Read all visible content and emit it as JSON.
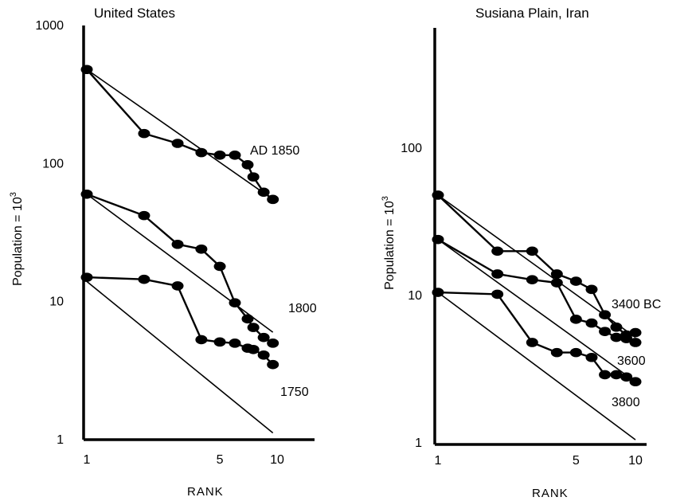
{
  "chart_data": [
    {
      "type": "line",
      "title": "United States",
      "xlabel": "RANK",
      "ylabel": "Population = 10",
      "ylabel_sup": "3",
      "x_scale": "log",
      "y_scale": "log",
      "xlim": [
        1,
        10
      ],
      "ylim": [
        1,
        1000
      ],
      "x_ticks": [
        1,
        5,
        10
      ],
      "y_ticks": [
        1,
        10,
        100,
        1000
      ],
      "series": [
        {
          "name": "AD 1850",
          "x": [
            1,
            2,
            3,
            4,
            5,
            6,
            7,
            7.5,
            8.5,
            9.5
          ],
          "y": [
            480,
            165,
            140,
            120,
            115,
            115,
            98,
            80,
            62,
            55
          ],
          "rank_size_line": [
            [
              1,
              480
            ],
            [
              9.5,
              55
            ]
          ]
        },
        {
          "name": "1800",
          "x": [
            1,
            2,
            3,
            4,
            5,
            6,
            7,
            7.5,
            8.5,
            9.5
          ],
          "y": [
            60,
            42,
            26,
            24,
            18,
            9.8,
            7.5,
            6.5,
            5.5,
            5.0
          ],
          "rank_size_line": [
            [
              1,
              60
            ],
            [
              9.5,
              6.0
            ]
          ]
        },
        {
          "name": "1750",
          "x": [
            1,
            2,
            3,
            4,
            5,
            6,
            7,
            7.5,
            8.5,
            9.5
          ],
          "y": [
            15,
            14.5,
            13,
            5.3,
            5.1,
            5.0,
            4.6,
            4.5,
            4.1,
            3.5
          ],
          "rank_size_line": [
            [
              1,
              14
            ],
            [
              9.5,
              1.12
            ]
          ]
        }
      ]
    },
    {
      "type": "line",
      "title": "Susiana Plain, Iran",
      "xlabel": "RANK",
      "ylabel": "Population = 10",
      "ylabel_sup": "3",
      "x_scale": "log",
      "y_scale": "log",
      "xlim": [
        1,
        10
      ],
      "ylim": [
        1,
        200
      ],
      "x_ticks": [
        1,
        5,
        10
      ],
      "y_ticks": [
        1,
        10,
        100
      ],
      "series": [
        {
          "name": "3400 BC",
          "x": [
            1,
            2,
            3,
            4,
            5,
            6,
            7,
            8,
            9,
            10
          ],
          "y": [
            48,
            20,
            20,
            14,
            12.5,
            11,
            7.4,
            6.1,
            5.4,
            5.6
          ],
          "rank_size_line": [
            [
              1,
              48
            ],
            [
              10,
              5.2
            ]
          ]
        },
        {
          "name": "3600",
          "x": [
            1,
            2,
            3,
            4,
            5,
            6,
            7,
            8,
            9,
            10
          ],
          "y": [
            24,
            14,
            12.8,
            12.2,
            6.9,
            6.5,
            5.7,
            5.2,
            5.1,
            4.8
          ],
          "rank_size_line": [
            [
              1,
              24
            ],
            [
              10,
              2.6
            ]
          ]
        },
        {
          "name": "3800",
          "x": [
            1,
            2,
            3,
            4,
            5,
            6,
            7,
            8,
            9,
            10
          ],
          "y": [
            10.5,
            10.2,
            4.8,
            4.1,
            4.1,
            3.8,
            2.9,
            2.9,
            2.8,
            2.6
          ],
          "rank_size_line": [
            [
              1,
              10.5
            ],
            [
              10,
              1.05
            ]
          ]
        }
      ]
    }
  ]
}
